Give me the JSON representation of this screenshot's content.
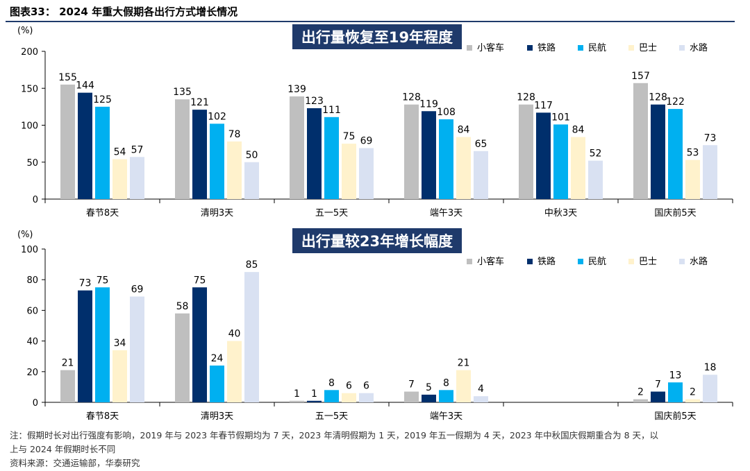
{
  "figure_title": "图表33：  2024 年重大假期各出行方式增长情况",
  "colors": {
    "小客车": "#bfbfbf",
    "铁路": "#002f6c",
    "民航": "#00b0f0",
    "巴士": "#fff2cc",
    "水路": "#d9e1f2",
    "title_box": "#1f3a6b"
  },
  "chart_data": [
    {
      "type": "bar",
      "title": "出行量恢复至19年程度",
      "ylabel": "(%)",
      "ylim": [
        0,
        200
      ],
      "yticks": [
        0,
        50,
        100,
        150,
        200
      ],
      "categories": [
        "春节8天",
        "清明3天",
        "五一5天",
        "端午3天",
        "中秋3天",
        "国庆前5天"
      ],
      "legend_position": "top-right",
      "series": [
        {
          "name": "小客车",
          "values": [
            155,
            135,
            139,
            128,
            128,
            157
          ]
        },
        {
          "name": "铁路",
          "values": [
            144,
            121,
            123,
            119,
            117,
            128
          ]
        },
        {
          "name": "民航",
          "values": [
            125,
            102,
            111,
            108,
            101,
            122
          ]
        },
        {
          "name": "巴士",
          "values": [
            54,
            78,
            75,
            84,
            84,
            53
          ]
        },
        {
          "name": "水路",
          "values": [
            57,
            50,
            69,
            65,
            52,
            73
          ]
        }
      ]
    },
    {
      "type": "bar",
      "title": "出行量较23年增长幅度",
      "ylabel": "(%)",
      "ylim": [
        0,
        100
      ],
      "yticks": [
        0,
        20,
        40,
        60,
        80,
        100
      ],
      "categories": [
        "春节8天",
        "清明3天",
        "五一5天",
        "端午3天",
        "",
        "国庆前5天"
      ],
      "legend_position": "top-right",
      "series": [
        {
          "name": "小客车",
          "values": [
            21,
            58,
            1,
            7,
            null,
            2
          ]
        },
        {
          "name": "铁路",
          "values": [
            73,
            75,
            1,
            5,
            null,
            7
          ]
        },
        {
          "name": "民航",
          "values": [
            75,
            24,
            8,
            8,
            null,
            13
          ]
        },
        {
          "name": "巴士",
          "values": [
            34,
            40,
            6,
            21,
            null,
            2
          ]
        },
        {
          "name": "水路",
          "values": [
            69,
            85,
            6,
            4,
            null,
            18
          ]
        }
      ]
    }
  ],
  "notes": {
    "line1": "注：假期时长对出行强度有影响，2019 年与 2023 年春节假期均为 7 天，2023 年清明假期为 1 天，2019 年五一假期为 4 天，2023 年中秋国庆假期重合为 8 天，以",
    "line2": "上与 2024 年假期时长不同",
    "source": "资料来源：交通运输部，华泰研究"
  }
}
